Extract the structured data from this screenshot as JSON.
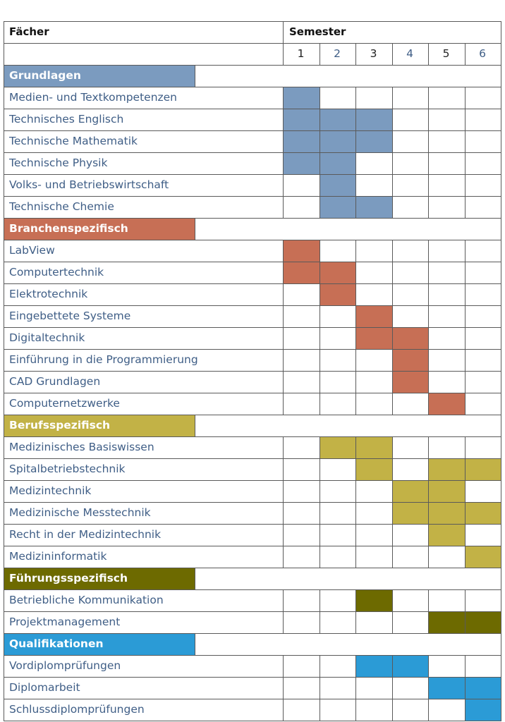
{
  "header": {
    "subjects_label": "Fächer",
    "semester_label": "Semester"
  },
  "semesters": [
    "1",
    "2",
    "3",
    "4",
    "5",
    "6"
  ],
  "colors": {
    "grundlagen": "#7b9bbf",
    "branchenspezifisch": "#c76f55",
    "berufsspezifisch": "#c2b246",
    "fuehrungsspezifisch": "#6d6a00",
    "qualifikationen": "#2b9bd6"
  },
  "groups": [
    {
      "title": "Grundlagen",
      "color": "#7b9bbf",
      "subjects": [
        {
          "name": "Medien- und Textkompetenzen",
          "semesters": [
            1
          ]
        },
        {
          "name": "Technisches Englisch",
          "semesters": [
            1,
            2,
            3
          ]
        },
        {
          "name": "Technische Mathematik",
          "semesters": [
            1,
            2,
            3
          ]
        },
        {
          "name": "Technische Physik",
          "semesters": [
            1,
            2
          ]
        },
        {
          "name": "Volks- und Betriebswirtschaft",
          "semesters": [
            2
          ]
        },
        {
          "name": "Technische Chemie",
          "semesters": [
            2,
            3
          ]
        }
      ]
    },
    {
      "title": "Branchenspezifisch",
      "color": "#c76f55",
      "subjects": [
        {
          "name": "LabView",
          "semesters": [
            1
          ]
        },
        {
          "name": "Computertechnik",
          "semesters": [
            1,
            2
          ]
        },
        {
          "name": "Elektrotechnik",
          "semesters": [
            2
          ]
        },
        {
          "name": "Eingebettete Systeme",
          "semesters": [
            3
          ]
        },
        {
          "name": "Digitaltechnik",
          "semesters": [
            3,
            4
          ]
        },
        {
          "name": "Einführung in die Programmierung",
          "semesters": [
            4
          ]
        },
        {
          "name": "CAD Grundlagen",
          "semesters": [
            4
          ]
        },
        {
          "name": "Computernetzwerke",
          "semesters": [
            5
          ]
        }
      ]
    },
    {
      "title": "Berufsspezifisch",
      "color": "#c2b246",
      "subjects": [
        {
          "name": "Medizinisches Basiswissen",
          "semesters": [
            2,
            3
          ]
        },
        {
          "name": "Spitalbetriebstechnik",
          "semesters": [
            3,
            5,
            6
          ]
        },
        {
          "name": "Medizintechnik",
          "semesters": [
            4,
            5
          ]
        },
        {
          "name": "Medizinische Messtechnik",
          "semesters": [
            4,
            5,
            6
          ]
        },
        {
          "name": "Recht in der Medizintechnik",
          "semesters": [
            5
          ]
        },
        {
          "name": "Medizininformatik",
          "semesters": [
            6
          ]
        }
      ]
    },
    {
      "title": "Führungsspezifisch",
      "color": "#6d6a00",
      "subjects": [
        {
          "name": "Betriebliche Kommunikation",
          "semesters": [
            3
          ]
        },
        {
          "name": "Projektmanagement",
          "semesters": [
            5,
            6
          ]
        }
      ]
    },
    {
      "title": "Qualifikationen",
      "color": "#2b9bd6",
      "subjects": [
        {
          "name": "Vordiplomprüfungen",
          "semesters": [
            3,
            4
          ]
        },
        {
          "name": "Diplomarbeit",
          "semesters": [
            5,
            6
          ]
        },
        {
          "name": "Schlussdiplomprüfungen",
          "semesters": [
            6
          ]
        }
      ]
    }
  ]
}
